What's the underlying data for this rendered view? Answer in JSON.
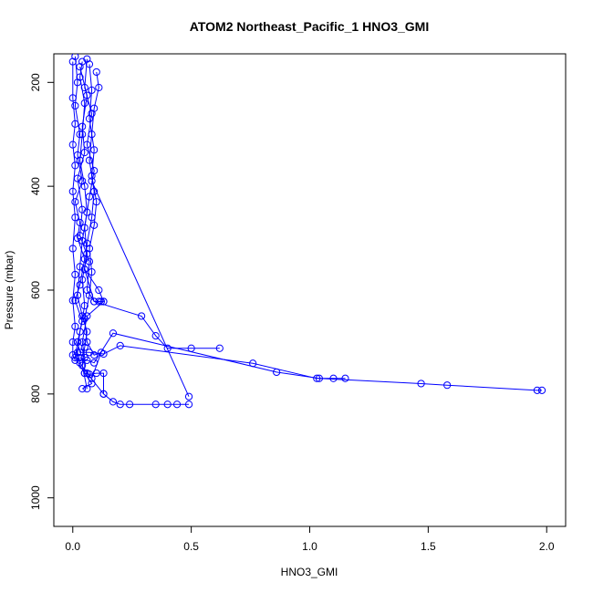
{
  "chart_data": {
    "type": "line",
    "title": "ATOM2 Northeast_Pacific_1 HNO3_GMI",
    "xlabel": "HNO3_GMI",
    "ylabel": "Pressure (mbar)",
    "xlim": [
      -0.08,
      2.08
    ],
    "ylim": [
      1055,
      145
    ],
    "y_reversed": true,
    "grid": false,
    "x_ticks": [
      0,
      0.5,
      1,
      1.5,
      2
    ],
    "x_tick_labels": [
      "0.0",
      "0.5",
      "1.0",
      "1.5",
      "2.0"
    ],
    "y_ticks": [
      200,
      400,
      600,
      800,
      1000
    ],
    "y_tick_labels": [
      "200",
      "400",
      "600",
      "800",
      "1000"
    ],
    "series_color": "#0000ff",
    "marker": "open-circle",
    "series": [
      {
        "points": [
          [
            0.01,
            150
          ],
          [
            0.02,
            200
          ],
          [
            0.01,
            245
          ],
          [
            0.03,
            300
          ],
          [
            0.02,
            340
          ],
          [
            0.04,
            390
          ],
          [
            0.01,
            430
          ],
          [
            0.03,
            470
          ],
          [
            0.02,
            500
          ],
          [
            0.05,
            540
          ],
          [
            0.03,
            590
          ],
          [
            0.01,
            620
          ],
          [
            0.04,
            660
          ],
          [
            0.02,
            700
          ],
          [
            0.01,
            730
          ],
          [
            0.05,
            760
          ],
          [
            0.08,
            780
          ],
          [
            0.04,
            790
          ]
        ]
      },
      {
        "points": [
          [
            0.06,
            155
          ],
          [
            0.05,
            210
          ],
          [
            0.08,
            260
          ],
          [
            0.06,
            320
          ],
          [
            0.09,
            370
          ],
          [
            0.07,
            420
          ],
          [
            0.05,
            480
          ],
          [
            0.06,
            530
          ],
          [
            0.04,
            580
          ],
          [
            0.05,
            630
          ],
          [
            0.03,
            680
          ],
          [
            0.02,
            720
          ],
          [
            0.03,
            740
          ],
          [
            0.06,
            760
          ],
          [
            0.13,
            800
          ],
          [
            0.17,
            815
          ],
          [
            0.2,
            820
          ],
          [
            0.24,
            820
          ],
          [
            0.35,
            820
          ],
          [
            0.4,
            820
          ],
          [
            0.44,
            820
          ],
          [
            0.49,
            820
          ]
        ]
      },
      {
        "points": [
          [
            0.1,
            180
          ],
          [
            0.11,
            210
          ],
          [
            0.09,
            250
          ],
          [
            0.08,
            300
          ],
          [
            0.07,
            350
          ],
          [
            0.09,
            410
          ],
          [
            0.08,
            460
          ],
          [
            0.06,
            510
          ],
          [
            0.05,
            560
          ],
          [
            0.09,
            622
          ],
          [
            0.11,
            622
          ],
          [
            0.12,
            622
          ],
          [
            0.13,
            622
          ]
        ]
      },
      {
        "points": [
          [
            0.03,
            170
          ],
          [
            0.06,
            225
          ],
          [
            0.04,
            285
          ],
          [
            0.05,
            335
          ],
          [
            0.02,
            385
          ],
          [
            0.04,
            445
          ],
          [
            0.03,
            495
          ],
          [
            0.07,
            545
          ],
          [
            0.06,
            600
          ],
          [
            0.09,
            622
          ],
          [
            0.29,
            650
          ],
          [
            0.35,
            688
          ],
          [
            0.4,
            712
          ],
          [
            0.5,
            712
          ],
          [
            0.62,
            712
          ]
        ]
      },
      {
        "points": [
          [
            0.08,
            390
          ],
          [
            0.49,
            805
          ]
        ]
      },
      {
        "points": [
          [
            0.02,
            700
          ],
          [
            0.03,
            720
          ],
          [
            0.07,
            720
          ],
          [
            0.13,
            723
          ],
          [
            0.2,
            707
          ],
          [
            0.76,
            741
          ],
          [
            1.03,
            770
          ],
          [
            1.1,
            770
          ],
          [
            1.15,
            770
          ]
        ]
      },
      {
        "points": [
          [
            0.03,
            730
          ],
          [
            0.06,
            735
          ],
          [
            0.09,
            740
          ],
          [
            0.17,
            683
          ],
          [
            0.86,
            758
          ],
          [
            1.04,
            770
          ],
          [
            1.47,
            780
          ],
          [
            1.58,
            783
          ],
          [
            1.96,
            793
          ],
          [
            1.98,
            793
          ]
        ]
      },
      {
        "points": [
          [
            0.05,
            560
          ],
          [
            0.11,
            600
          ],
          [
            0.13,
            622
          ],
          [
            0.06,
            650
          ],
          [
            0.04,
            700
          ],
          [
            0.05,
            730
          ],
          [
            0.05,
            760
          ],
          [
            0.07,
            762
          ],
          [
            0.1,
            760
          ],
          [
            0.13,
            760
          ],
          [
            0.13,
            800
          ]
        ]
      },
      {
        "points": [
          [
            0.0,
            160
          ],
          [
            0.0,
            230
          ],
          [
            0.01,
            280
          ],
          [
            0.0,
            320
          ],
          [
            0.01,
            360
          ],
          [
            0.0,
            410
          ],
          [
            0.01,
            460
          ],
          [
            0.0,
            520
          ],
          [
            0.01,
            570
          ],
          [
            0.0,
            620
          ],
          [
            0.01,
            670
          ],
          [
            0.0,
            700
          ],
          [
            0.0,
            725
          ],
          [
            0.01,
            735
          ]
        ]
      },
      {
        "points": [
          [
            0.04,
            160
          ],
          [
            0.03,
            190
          ],
          [
            0.05,
            240
          ],
          [
            0.04,
            300
          ],
          [
            0.03,
            350
          ],
          [
            0.05,
            400
          ],
          [
            0.06,
            450
          ],
          [
            0.04,
            505
          ],
          [
            0.03,
            555
          ],
          [
            0.02,
            610
          ],
          [
            0.04,
            650
          ],
          [
            0.06,
            680
          ],
          [
            0.05,
            710
          ],
          [
            0.04,
            745
          ],
          [
            0.06,
            790
          ]
        ]
      },
      {
        "points": [
          [
            0.07,
            165
          ],
          [
            0.08,
            215
          ],
          [
            0.07,
            270
          ],
          [
            0.09,
            330
          ],
          [
            0.08,
            380
          ],
          [
            0.1,
            430
          ],
          [
            0.09,
            475
          ],
          [
            0.07,
            520
          ],
          [
            0.08,
            565
          ],
          [
            0.07,
            610
          ],
          [
            0.05,
            655
          ],
          [
            0.06,
            700
          ],
          [
            0.09,
            725
          ],
          [
            0.12,
            720
          ],
          [
            0.08,
            770
          ]
        ]
      }
    ]
  }
}
